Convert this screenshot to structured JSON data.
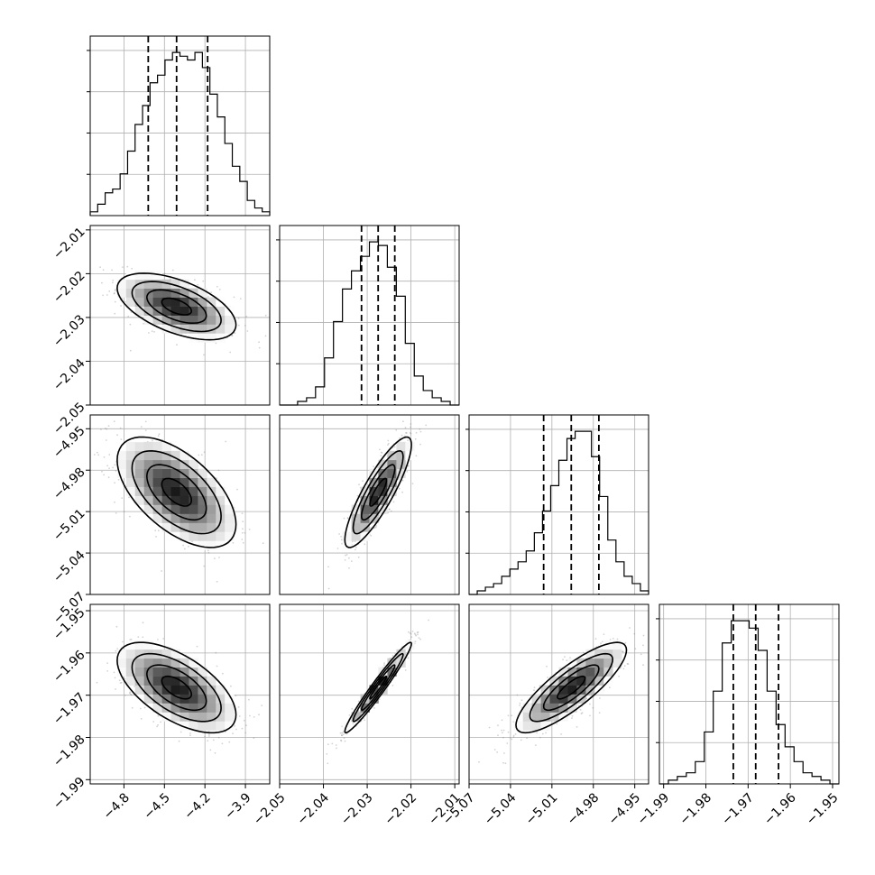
{
  "chart_data": {
    "type": "corner",
    "grid": true,
    "parameters": [
      {
        "range": [
          -5.05,
          -3.72
        ],
        "ticks": [
          -4.8,
          -4.5,
          -4.2,
          -3.9
        ],
        "tick_labels": [
          "−4.8",
          "−4.5",
          "−4.2",
          "−3.9"
        ],
        "quantiles": [
          -4.62,
          -4.41,
          -4.18
        ],
        "hist": [
          1,
          3,
          6,
          7,
          11,
          17,
          24,
          29,
          35,
          37,
          41,
          43,
          42,
          41,
          43,
          39,
          32,
          26,
          19,
          13,
          9,
          4,
          2,
          1
        ]
      },
      {
        "range": [
          -2.05,
          -2.009
        ],
        "ticks": [
          -2.05,
          -2.04,
          -2.03,
          -2.02,
          -2.01
        ],
        "tick_labels": [
          "−2.05",
          "−2.04",
          "−2.03",
          "−2.02",
          "−2.01"
        ],
        "quantiles": [
          -2.0313,
          -2.0275,
          -2.0237
        ],
        "hist": [
          0,
          0,
          1,
          2,
          5,
          13,
          23,
          32,
          37,
          41,
          45,
          44,
          38,
          30,
          17,
          8,
          4,
          2,
          1,
          0
        ]
      },
      {
        "range": [
          -5.07,
          -4.94
        ],
        "ticks": [
          -5.07,
          -5.04,
          -5.01,
          -4.98,
          -4.95
        ],
        "tick_labels": [
          "−5.07",
          "−5.04",
          "−5.01",
          "−4.98",
          "−4.95"
        ],
        "quantiles": [
          -5.016,
          -4.996,
          -4.976
        ],
        "hist": [
          0,
          1,
          2,
          3,
          5,
          7,
          9,
          12,
          17,
          23,
          30,
          37,
          43,
          45,
          45,
          38,
          27,
          15,
          9,
          5,
          3,
          1
        ]
      },
      {
        "range": [
          -1.991,
          -1.9485
        ],
        "ticks": [
          -1.99,
          -1.98,
          -1.97,
          -1.96,
          -1.95
        ],
        "tick_labels": [
          "−1.99",
          "−1.98",
          "−1.97",
          "−1.96",
          "−1.95"
        ],
        "quantiles": [
          -1.9735,
          -1.9682,
          -1.9628
        ],
        "hist": [
          0,
          1,
          2,
          3,
          6,
          14,
          25,
          38,
          44,
          44,
          42,
          36,
          25,
          16,
          10,
          6,
          3,
          2,
          1,
          0
        ]
      }
    ]
  }
}
